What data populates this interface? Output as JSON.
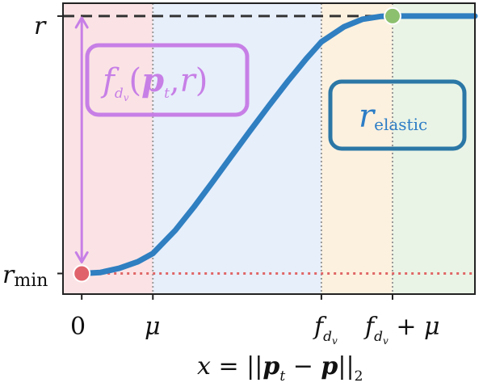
{
  "chart_data": {
    "type": "line",
    "title": "",
    "xlabel": "x = ||p_t − p||₂",
    "ylabel": "",
    "xlim": [
      -0.05,
      1.05
    ],
    "ylim": [
      -0.08,
      1.05
    ],
    "x_ticks": [
      {
        "value": 0,
        "label": "0"
      },
      {
        "value": 0.19,
        "label": "μ"
      },
      {
        "value": 0.64,
        "label": "f_dv"
      },
      {
        "value": 0.83,
        "label": "f_dv + μ"
      }
    ],
    "y_ticks": [
      {
        "value": 0,
        "label": "r_min"
      },
      {
        "value": 1,
        "label": "r"
      }
    ],
    "series": [
      {
        "name": "r_elastic",
        "color": "#2f7fc1",
        "x": [
          0,
          0.05,
          0.1,
          0.15,
          0.19,
          0.25,
          0.3,
          0.35,
          0.4,
          0.45,
          0.5,
          0.55,
          0.6,
          0.64,
          0.7,
          0.75,
          0.8,
          0.83,
          0.9,
          1.0,
          1.05
        ],
        "y": [
          0,
          0.004,
          0.02,
          0.046,
          0.078,
          0.168,
          0.259,
          0.357,
          0.456,
          0.555,
          0.652,
          0.746,
          0.835,
          0.9,
          0.958,
          0.988,
          0.999,
          1.0,
          1.0,
          1.0,
          1.0
        ]
      }
    ],
    "reference_lines": [
      {
        "axis": "y",
        "value": 1,
        "style": "dashed",
        "color": "#333333"
      },
      {
        "axis": "y",
        "value": 0,
        "style": "dotted",
        "color": "#e06666"
      },
      {
        "axis": "x",
        "value": 0.19,
        "style": "dotted",
        "color": "#999999"
      },
      {
        "axis": "x",
        "value": 0.64,
        "style": "dotted",
        "color": "#999999"
      },
      {
        "axis": "x",
        "value": 0.83,
        "style": "dotted",
        "color": "#999999"
      }
    ],
    "regions": [
      {
        "from": -0.05,
        "to": 0.19,
        "color": "#fbe3e5"
      },
      {
        "from": 0.19,
        "to": 0.64,
        "color": "#e7effb"
      },
      {
        "from": 0.64,
        "to": 0.83,
        "color": "#fcf1df"
      },
      {
        "from": 0.83,
        "to": 1.05,
        "color": "#eaf4e6"
      }
    ],
    "markers": [
      {
        "x": 0,
        "y": 0,
        "color": "#e0636b"
      },
      {
        "x": 0.83,
        "y": 1,
        "color": "#8cc06e"
      }
    ],
    "annotations": [
      {
        "text": "f_dv(p_t, r)",
        "color": "#c77fe6"
      },
      {
        "text": "r_elastic",
        "color": "#2c7dc6"
      }
    ],
    "grid": false,
    "legend": "none"
  }
}
